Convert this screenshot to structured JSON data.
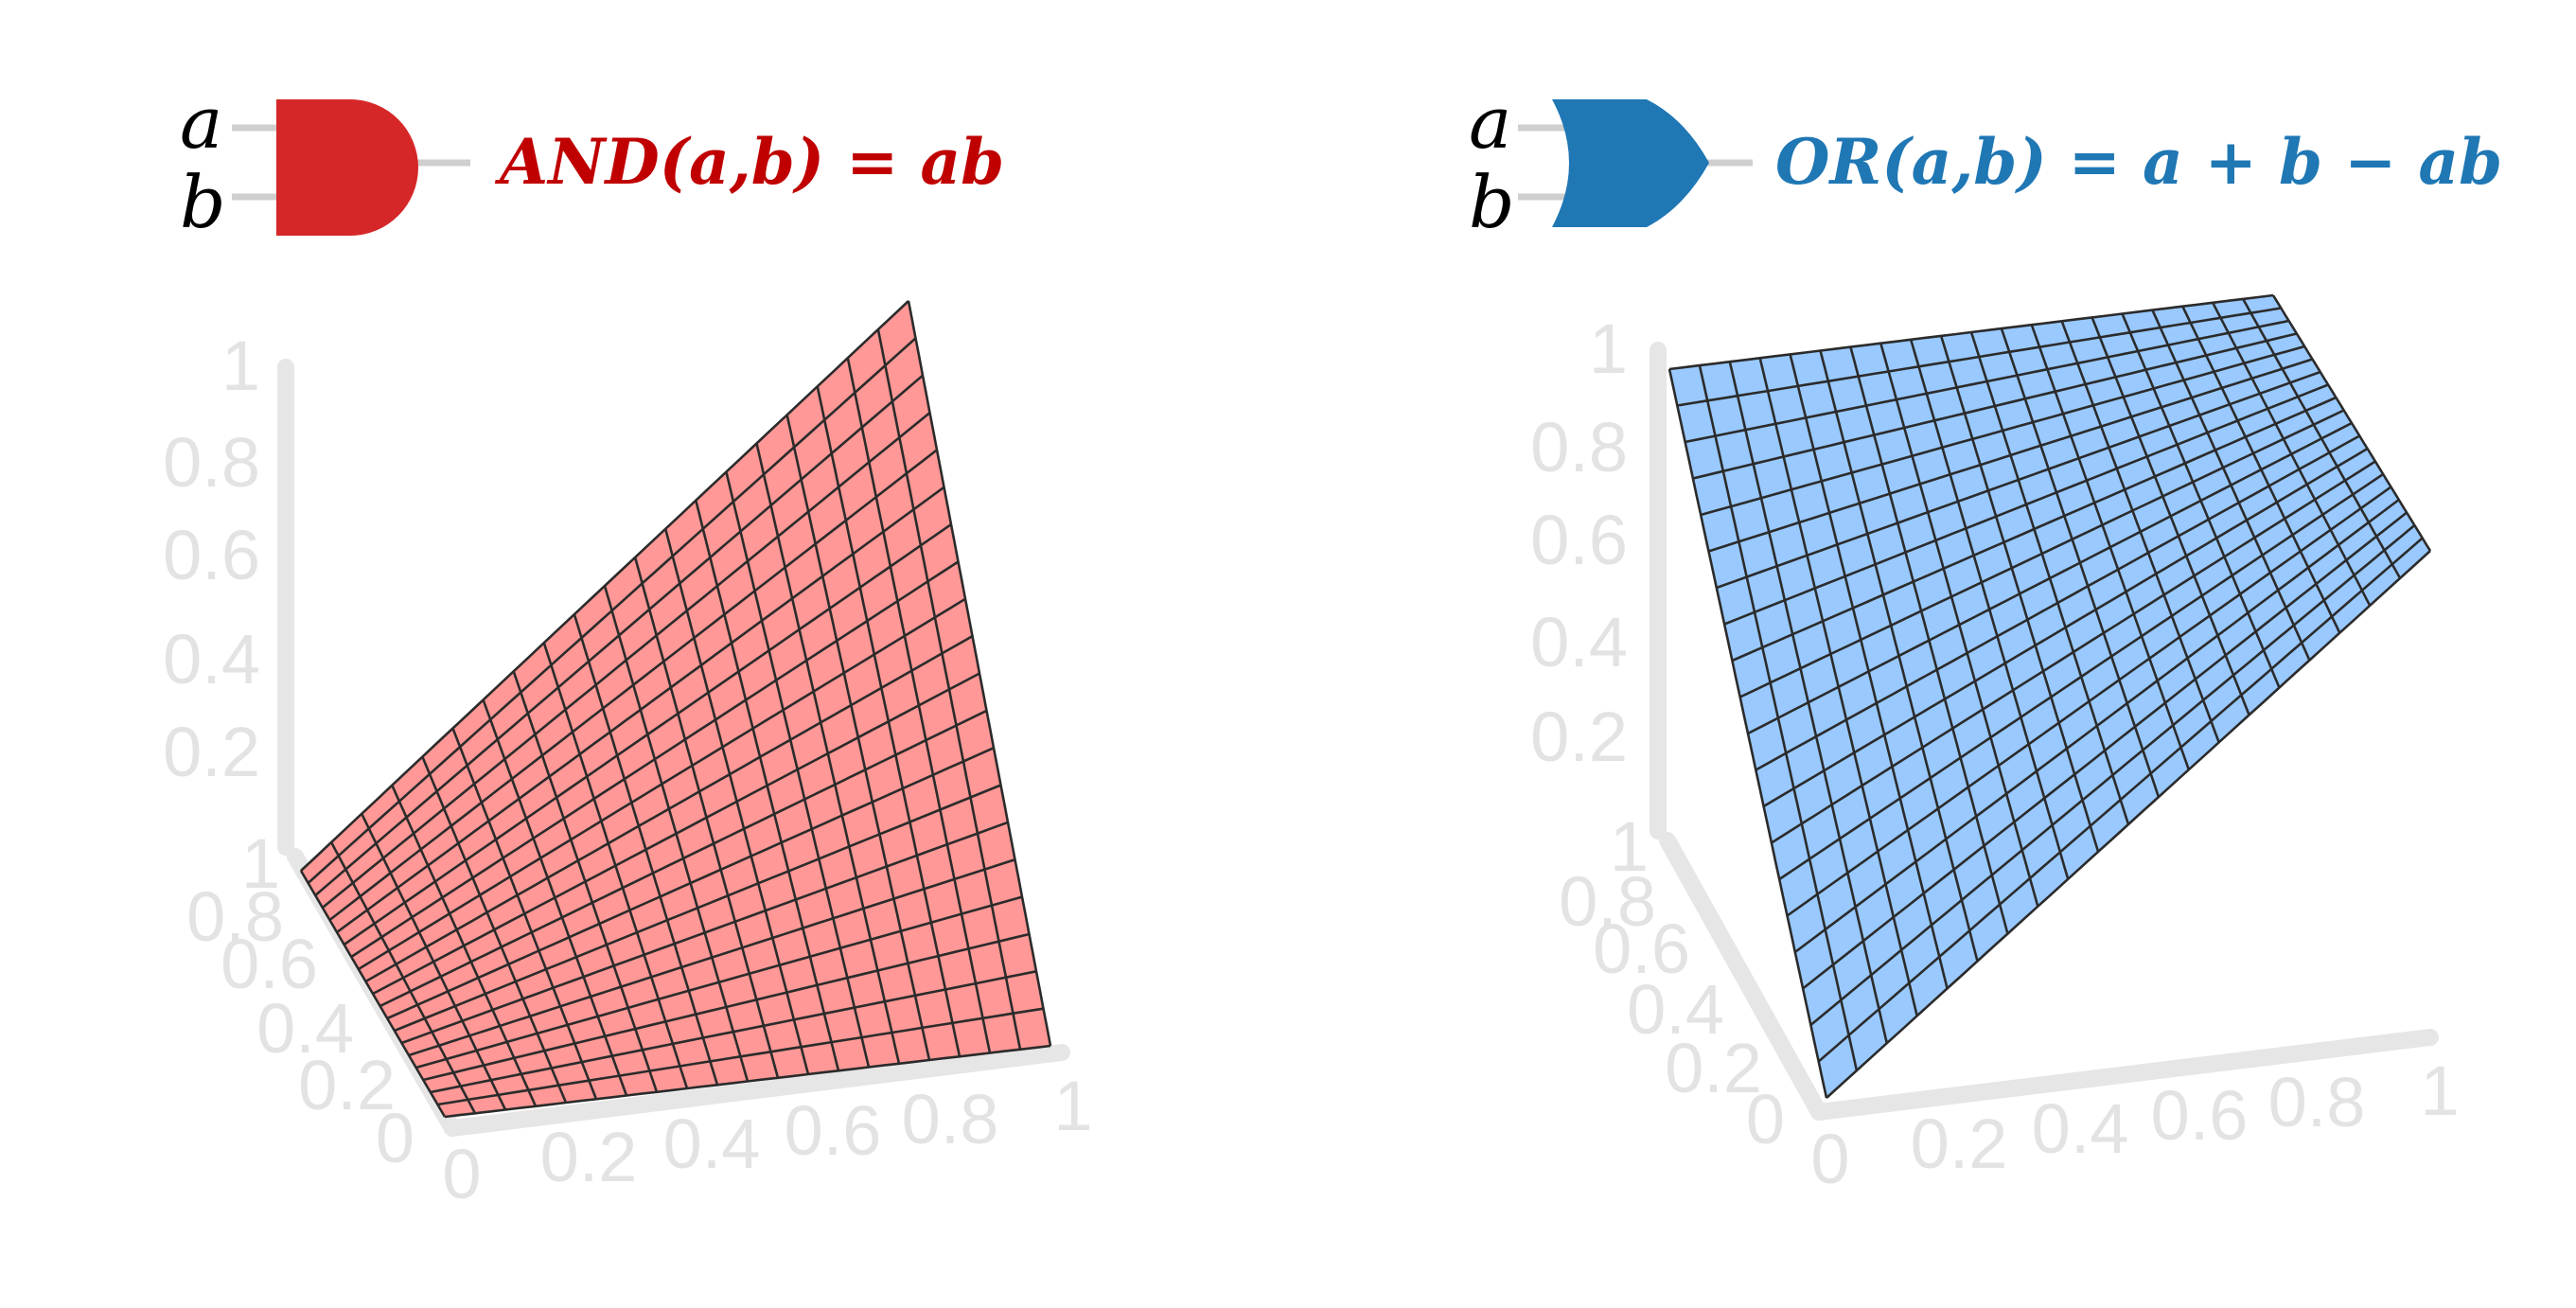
{
  "chart_data": [
    {
      "type": "surface",
      "function": "ab",
      "formula": "AND(a,b) = ab",
      "gate_inputs": [
        "a",
        "b"
      ],
      "gate": "AND",
      "x_ticks": [
        "0",
        "0.2",
        "0.4",
        "0.6",
        "0.8",
        "1"
      ],
      "y_ticks": [
        "0",
        "0.2",
        "0.4",
        "0.6",
        "0.8",
        "1"
      ],
      "z_ticks": [
        "0.2",
        "0.4",
        "0.6",
        "0.8",
        "1"
      ],
      "xlim": [
        0,
        1
      ],
      "ylim": [
        0,
        1
      ],
      "zlim": [
        0,
        1
      ],
      "grid_divisions": 20,
      "color": "#d62728",
      "surface_color": "#ff9896"
    },
    {
      "type": "surface",
      "function": "a + b - ab",
      "formula": "OR(a,b) = a + b − ab",
      "gate_inputs": [
        "a",
        "b"
      ],
      "gate": "OR",
      "x_ticks": [
        "0",
        "0.2",
        "0.4",
        "0.6",
        "0.8",
        "1"
      ],
      "y_ticks": [
        "0",
        "0.2",
        "0.4",
        "0.6",
        "0.8",
        "1"
      ],
      "z_ticks": [
        "0.2",
        "0.4",
        "0.6",
        "0.8",
        "1"
      ],
      "xlim": [
        0,
        1
      ],
      "ylim": [
        0,
        1
      ],
      "zlim": [
        0,
        1
      ],
      "grid_divisions": 20,
      "color": "#1f77b4",
      "surface_color": "#99c9ff"
    }
  ]
}
